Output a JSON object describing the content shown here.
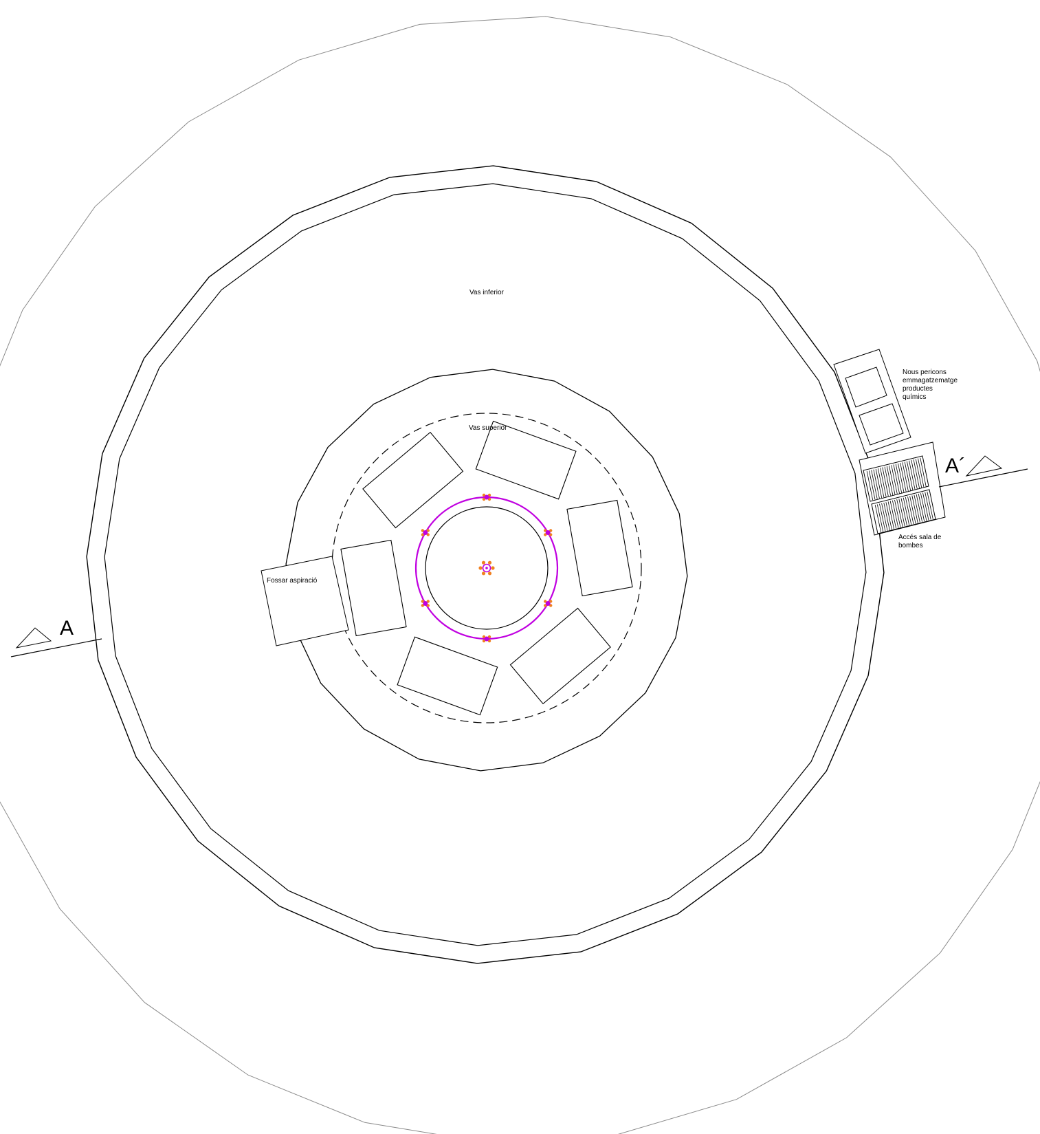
{
  "labels": {
    "lower_basin": "Vas inferior",
    "upper_basin": "Vas superior",
    "suction_pit": "Fossar aspiració",
    "chem_storage": [
      "Nous pericons",
      "emmagatzematge",
      "productes",
      "químics"
    ],
    "pump_access": [
      "Accés sala de",
      "bombes"
    ],
    "section_a": "A",
    "section_a_prime": "A´"
  },
  "colors": {
    "line": "#000000",
    "outer_ring": "#8a8a8a",
    "jets_ring": "#c000e0",
    "nozzle": "#f08020"
  }
}
